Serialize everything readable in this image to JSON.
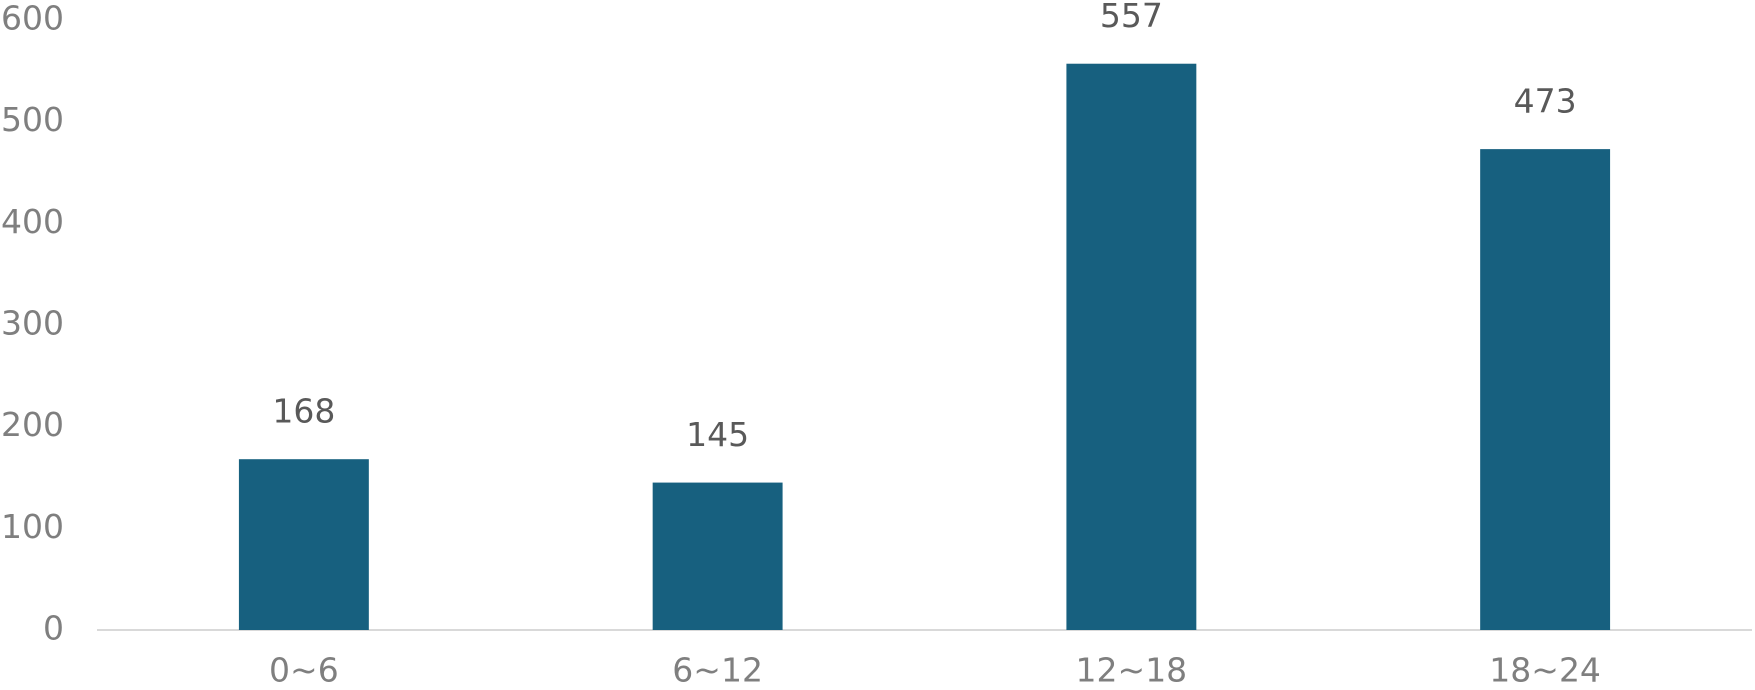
{
  "chart_data": {
    "type": "bar",
    "categories": [
      "0~6",
      "6~12",
      "12~18",
      "18~24"
    ],
    "values": [
      168,
      145,
      557,
      473
    ],
    "color": "#17607f",
    "ylim": [
      0,
      600
    ],
    "yticks": [
      0,
      100,
      200,
      300,
      400,
      500,
      600
    ],
    "grid": false,
    "data_labels": true
  }
}
